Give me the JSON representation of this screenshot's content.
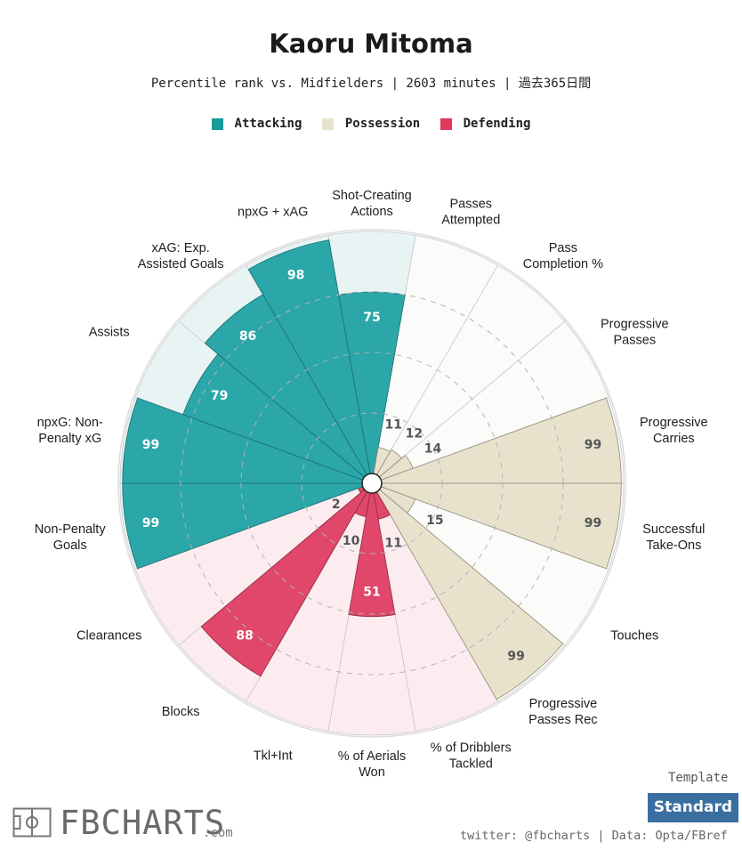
{
  "header": {
    "title": "Kaoru Mitoma",
    "subtitle": "Percentile rank vs. Midfielders | 2603 minutes | 過去365日間"
  },
  "legend": [
    {
      "label": "Attacking",
      "color": "#1b9a9c"
    },
    {
      "label": "Possession",
      "color": "#e8e2cd"
    },
    {
      "label": "Defending",
      "color": "#e0375a"
    }
  ],
  "chart_data": {
    "type": "polar-bar",
    "range": [
      0,
      100
    ],
    "categories": [
      {
        "label": "Shot-Creating Actions",
        "value": 75,
        "group": "Attacking"
      },
      {
        "label": "Passes Attempted",
        "value": 11,
        "group": "Possession"
      },
      {
        "label": "Pass Completion %",
        "value": 12,
        "group": "Possession"
      },
      {
        "label": "Progressive Passes",
        "value": 14,
        "group": "Possession"
      },
      {
        "label": "Progressive Carries",
        "value": 99,
        "group": "Possession"
      },
      {
        "label": "Successful Take-Ons",
        "value": 99,
        "group": "Possession"
      },
      {
        "label": "Touches",
        "value": 15,
        "group": "Possession"
      },
      {
        "label": "Progressive Passes Rec",
        "value": 99,
        "group": "Possession"
      },
      {
        "label": "% of Dribblers Tackled",
        "value": 11,
        "group": "Defending"
      },
      {
        "label": "% of Aerials Won",
        "value": 51,
        "group": "Defending"
      },
      {
        "label": "Tkl+Int",
        "value": 10,
        "group": "Defending"
      },
      {
        "label": "Blocks",
        "value": 88,
        "group": "Defending"
      },
      {
        "label": "Clearances",
        "value": 2,
        "group": "Defending"
      },
      {
        "label": "Non-Penalty Goals",
        "value": 99,
        "group": "Attacking"
      },
      {
        "label": "npxG: Non-Penalty xG",
        "value": 99,
        "group": "Attacking"
      },
      {
        "label": "Assists",
        "value": 79,
        "group": "Attacking"
      },
      {
        "label": "xAG: Exp. Assisted Goals",
        "value": 86,
        "group": "Attacking"
      },
      {
        "label": "npxG + xAG",
        "value": 98,
        "group": "Attacking"
      }
    ],
    "group_colors": {
      "Attacking": {
        "bar": "#2ba6a9",
        "bg": "#e8f4f4"
      },
      "Possession": {
        "bar": "#e8e2cd",
        "bg": "#fbfbf9"
      },
      "Defending": {
        "bar": "#e0476a",
        "bg": "#fcecef"
      }
    }
  },
  "footer": {
    "template_label": "Template",
    "template_button": "Standard",
    "credit": "twitter: @fbcharts | Data: Opta/FBref",
    "logo_text": "FBCHARTS",
    "logo_suffix": ".com"
  }
}
